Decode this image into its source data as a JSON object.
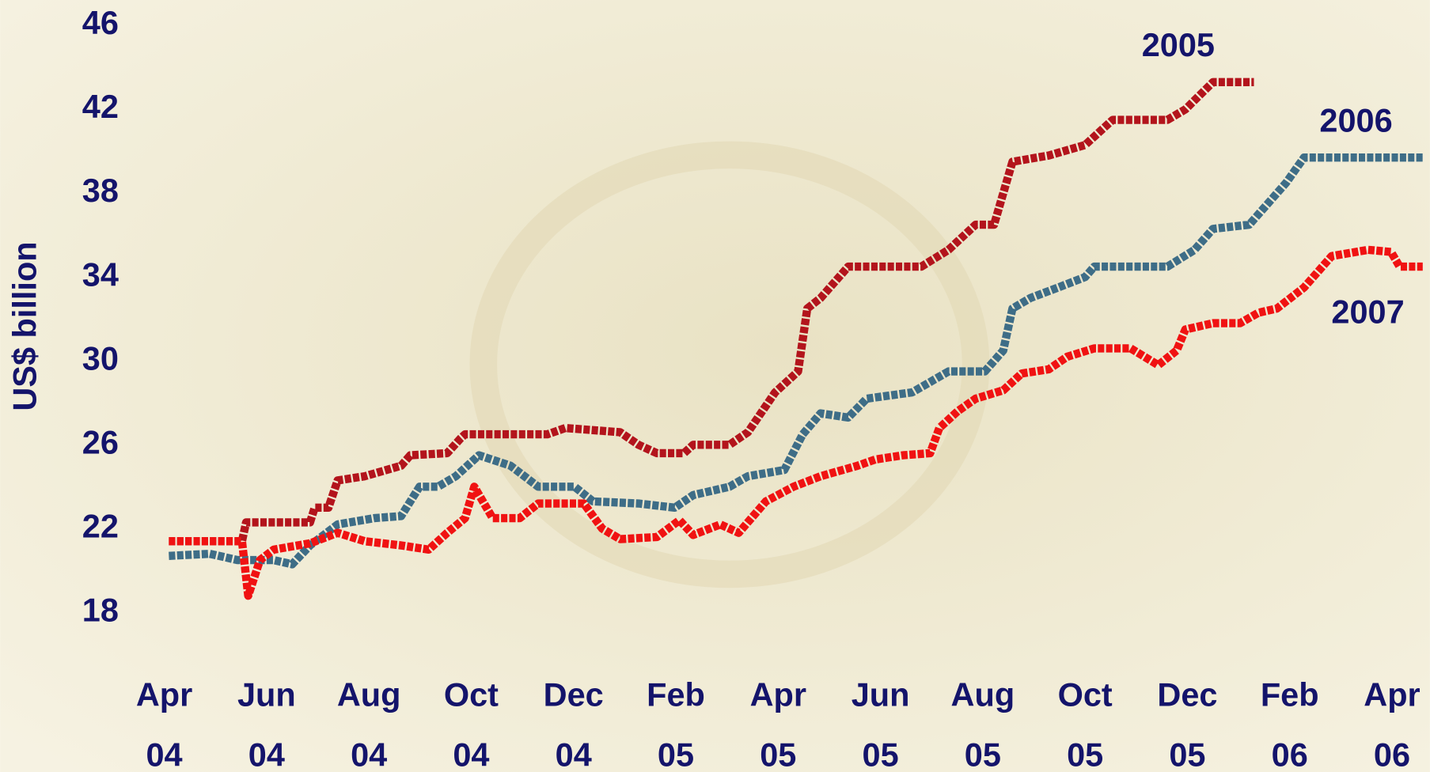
{
  "chart_data": {
    "type": "line",
    "y_label": "US$ billion",
    "xlim": [
      -0.5,
      24.7
    ],
    "xticks": [
      {
        "value": 0,
        "label": "Apr 04"
      },
      {
        "value": 2,
        "label": "Jun 04"
      },
      {
        "value": 4,
        "label": "Aug 04"
      },
      {
        "value": 6,
        "label": "Oct 04"
      },
      {
        "value": 8,
        "label": "Dec 04"
      },
      {
        "value": 10,
        "label": "Feb 05"
      },
      {
        "value": 12,
        "label": "Apr 05"
      },
      {
        "value": 14,
        "label": "Jun 05"
      },
      {
        "value": 16,
        "label": "Aug 05"
      },
      {
        "value": 18,
        "label": "Oct 05"
      },
      {
        "value": 20,
        "label": "Dec 05"
      },
      {
        "value": 22,
        "label": "Feb 06"
      },
      {
        "value": 24,
        "label": "Apr 06"
      }
    ],
    "ylim": [
      18,
      46
    ],
    "yticks": [
      18,
      22,
      26,
      30,
      34,
      38,
      42,
      46
    ],
    "grid": false,
    "series": [
      {
        "name": "2005",
        "color": "#b3141c",
        "x": [
          0.09,
          1.52,
          1.6,
          2.85,
          2.94,
          3.21,
          3.39,
          3.92,
          4.63,
          4.81,
          5.53,
          5.79,
          5.88,
          7.49,
          7.84,
          8.91,
          9.27,
          9.63,
          10.16,
          10.34,
          11.05,
          11.41,
          11.94,
          12.39,
          12.57,
          12.83,
          13.37,
          14.8,
          15.33,
          15.86,
          16.22,
          16.4,
          16.58,
          17.29,
          18.0,
          18.54,
          19.61,
          19.96,
          20.5,
          21.3
        ],
        "values": [
          21.4,
          21.4,
          22.3,
          22.3,
          23,
          23,
          24.3,
          24.5,
          25,
          25.5,
          25.6,
          26.3,
          26.5,
          26.5,
          26.8,
          26.6,
          26,
          25.6,
          25.6,
          26,
          26,
          26.6,
          28.5,
          29.5,
          32.5,
          33,
          34.5,
          34.5,
          35.3,
          36.5,
          36.5,
          38,
          39.5,
          39.8,
          40.3,
          41.5,
          41.5,
          42,
          43.3,
          43.3
        ]
      },
      {
        "name": "2006",
        "color": "#3e6d87",
        "x": [
          0.09,
          0.89,
          1.43,
          2.14,
          2.5,
          2.85,
          3.39,
          4.1,
          4.63,
          4.99,
          5.35,
          5.7,
          6.15,
          6.77,
          7.31,
          8.02,
          8.38,
          9.27,
          9.98,
          10.34,
          11.05,
          11.41,
          12.12,
          12.48,
          12.83,
          13.37,
          13.73,
          14.62,
          15.33,
          16.04,
          16.4,
          16.58,
          16.93,
          17.47,
          18.0,
          18.18,
          19.61,
          20.14,
          20.5,
          21.21,
          21.57,
          21.93,
          22.28,
          24.6
        ],
        "values": [
          20.7,
          20.8,
          20.5,
          20.5,
          20.3,
          21.2,
          22.2,
          22.5,
          22.6,
          24,
          24,
          24.5,
          25.5,
          25,
          24,
          24,
          23.3,
          23.2,
          23,
          23.6,
          24,
          24.5,
          24.8,
          26.5,
          27.5,
          27.3,
          28.2,
          28.5,
          29.5,
          29.5,
          30.5,
          32.5,
          33,
          33.5,
          34,
          34.5,
          34.5,
          35.3,
          36.3,
          36.5,
          37.5,
          38.5,
          39.7,
          39.7
        ]
      },
      {
        "name": "2007",
        "color": "#f01212",
        "x": [
          0.09,
          1.52,
          1.64,
          1.87,
          2.14,
          2.85,
          3.39,
          3.92,
          4.63,
          5.17,
          5.53,
          5.88,
          6.06,
          6.42,
          6.95,
          7.31,
          8.2,
          8.56,
          8.91,
          9.63,
          10.07,
          10.34,
          10.87,
          11.23,
          11.76,
          12.3,
          12.83,
          13.55,
          13.9,
          14.44,
          14.97,
          15.15,
          15.51,
          15.86,
          16.4,
          16.76,
          17.29,
          17.65,
          18.18,
          18.89,
          19.43,
          19.79,
          19.96,
          20.5,
          21.03,
          21.39,
          21.75,
          22.28,
          22.82,
          23.53,
          23.98,
          24.15,
          24.6
        ],
        "values": [
          21.4,
          21.4,
          18.8,
          20.5,
          21,
          21.3,
          21.8,
          21.4,
          21.2,
          21,
          21.8,
          22.5,
          24,
          22.5,
          22.5,
          23.2,
          23.2,
          22,
          21.5,
          21.6,
          22.4,
          21.7,
          22.2,
          21.8,
          23.3,
          24,
          24.5,
          25,
          25.3,
          25.5,
          25.6,
          26.8,
          27.6,
          28.2,
          28.6,
          29.4,
          29.6,
          30.2,
          30.6,
          30.6,
          29.8,
          30.5,
          31.5,
          31.8,
          31.8,
          32.3,
          32.5,
          33.5,
          35,
          35.3,
          35.2,
          34.5,
          34.5
        ]
      }
    ]
  }
}
